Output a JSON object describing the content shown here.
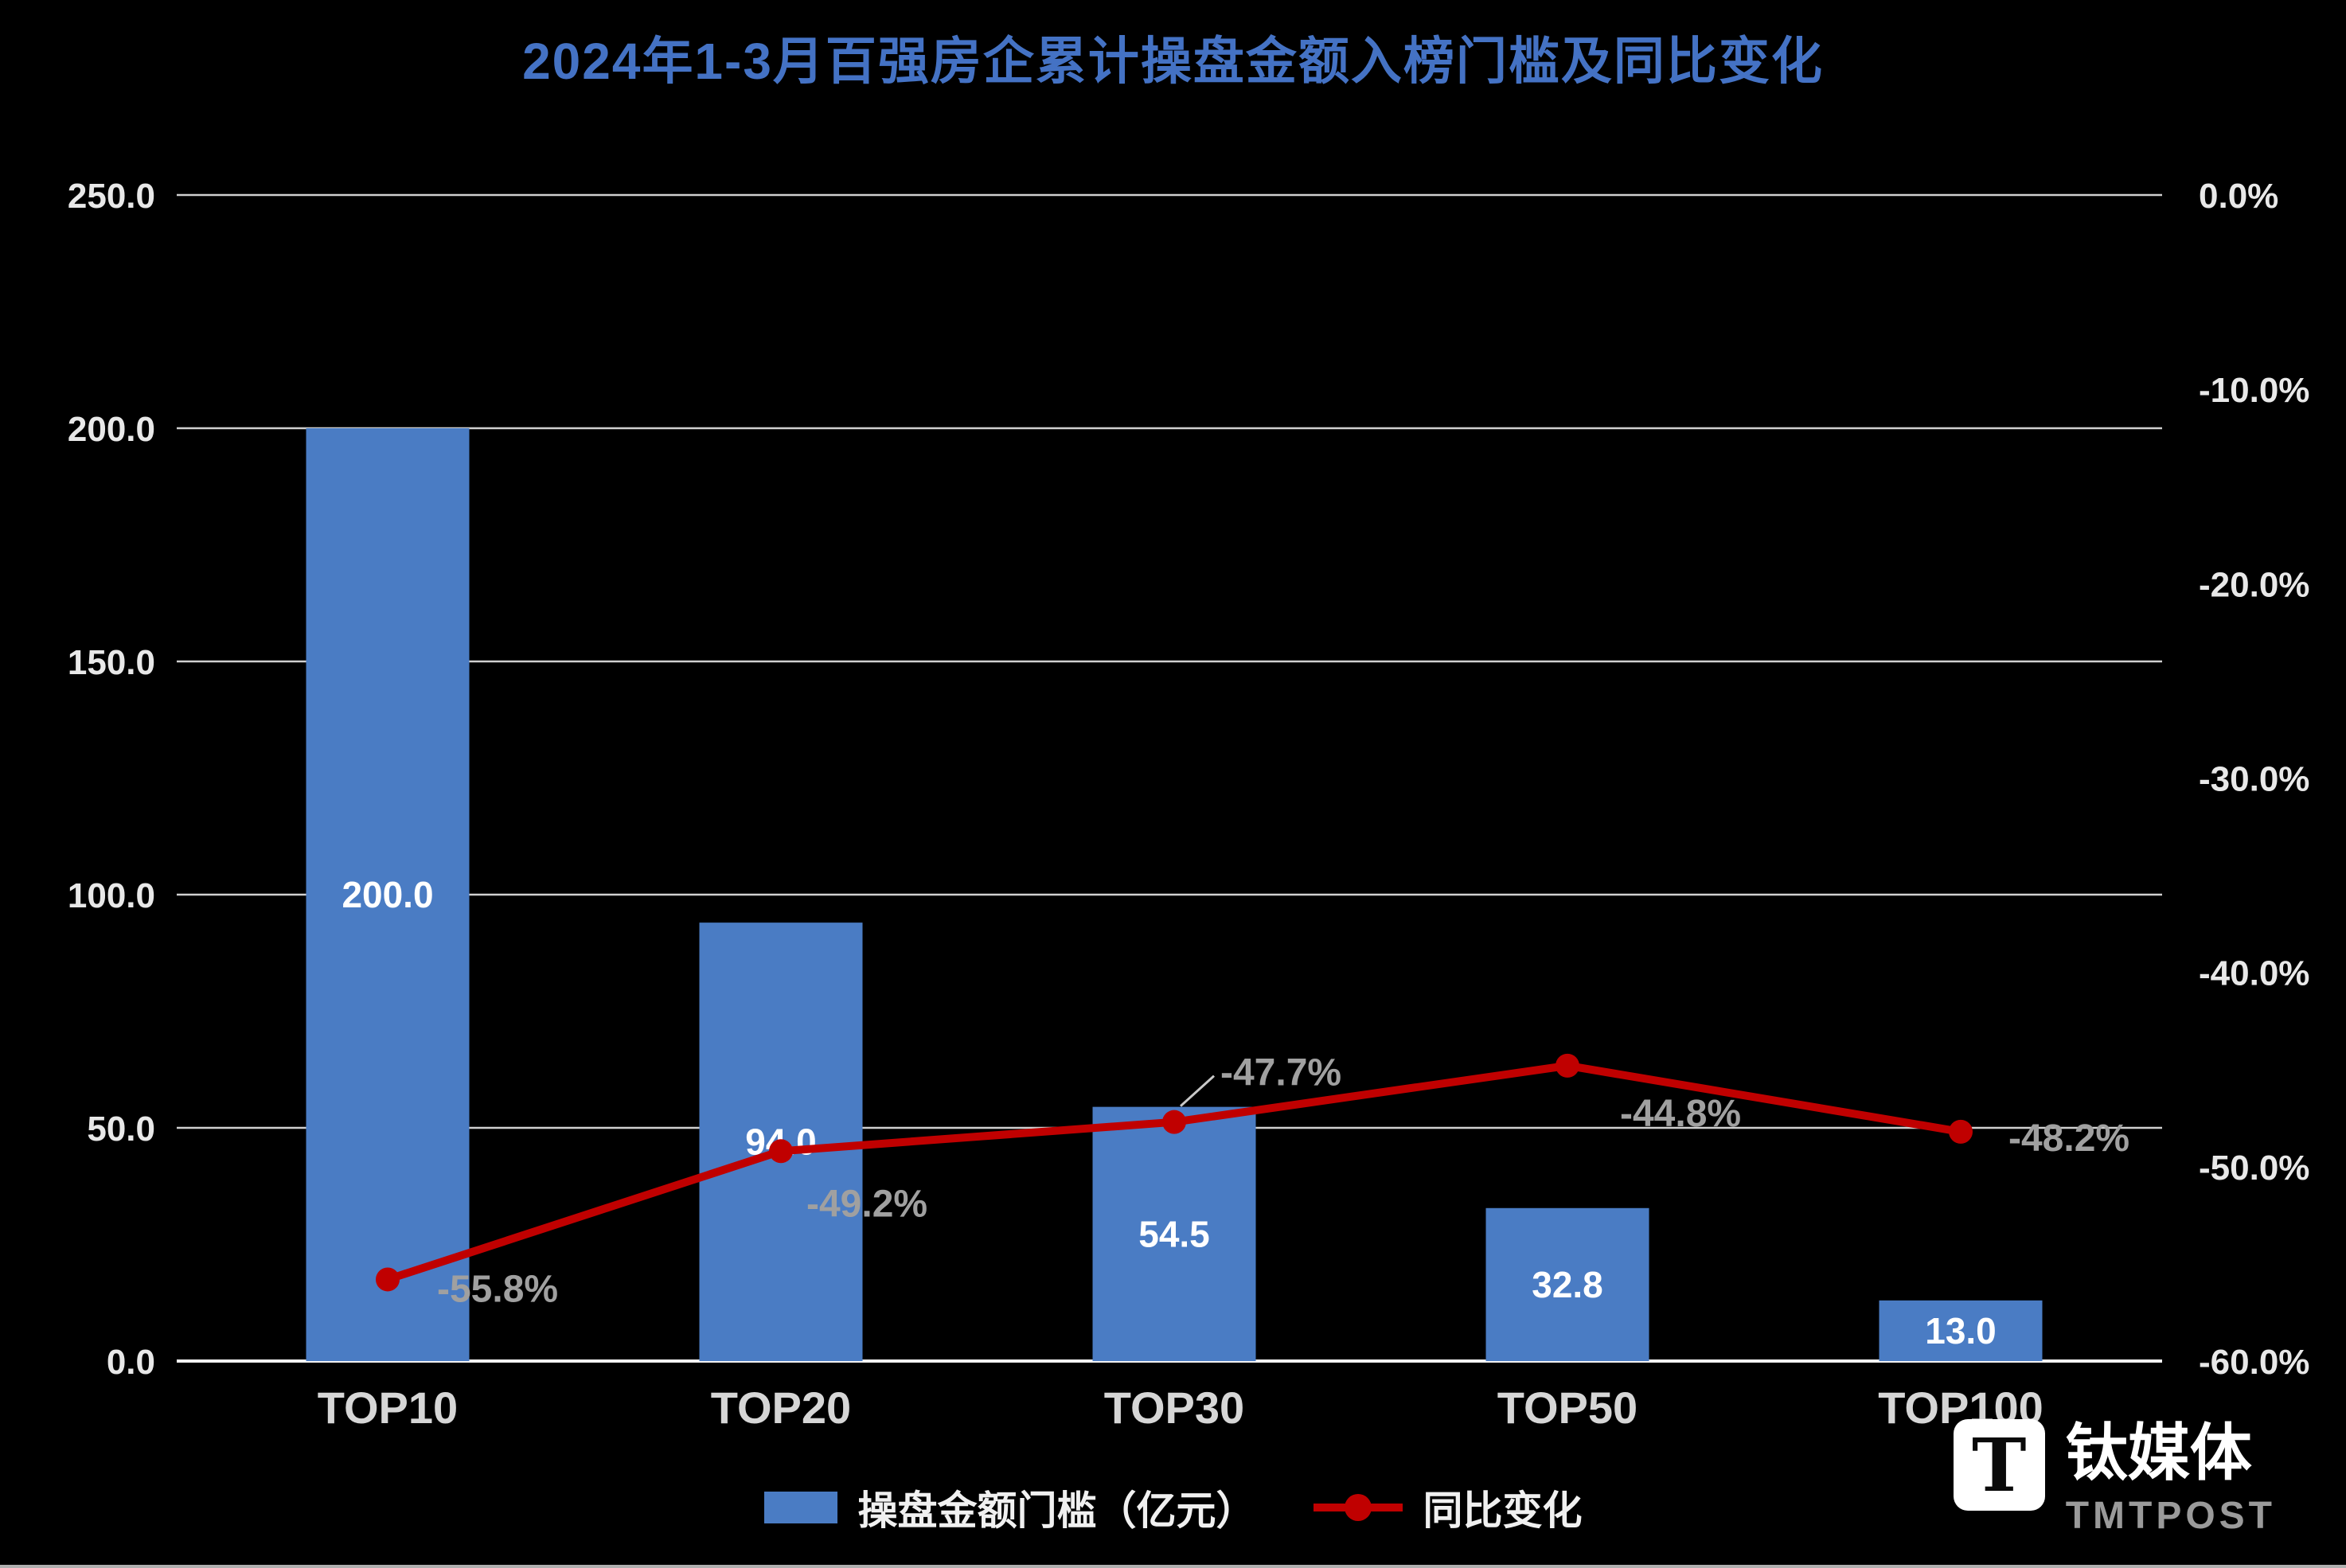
{
  "chart_data": {
    "type": "bar",
    "title": "2024年1-3月百强房企累计操盘金额入榜门槛及同比变化",
    "categories": [
      "TOP10",
      "TOP20",
      "TOP30",
      "TOP50",
      "TOP100"
    ],
    "series": [
      {
        "name": "操盘金额门槛（亿元）",
        "type": "bar",
        "axis": "left",
        "color": "#4a7cc4",
        "values": [
          200.0,
          94.0,
          54.5,
          32.8,
          13.0
        ],
        "labels": [
          "200.0",
          "94.0",
          "54.5",
          "32.8",
          "13.0"
        ]
      },
      {
        "name": "同比变化",
        "type": "line",
        "axis": "right",
        "color": "#c00000",
        "values": [
          -55.8,
          -49.2,
          -47.7,
          -44.8,
          -48.2
        ],
        "labels": [
          "-55.8%",
          "-49.2%",
          "-47.7%",
          "-44.8%",
          "-48.2%"
        ]
      }
    ],
    "left_axis": {
      "min": 0,
      "max": 250,
      "ticks": [
        "0.0",
        "50.0",
        "100.0",
        "150.0",
        "200.0",
        "250.0"
      ]
    },
    "right_axis": {
      "min": -60,
      "max": 0,
      "ticks": [
        "0.0%",
        "-10.0%",
        "-20.0%",
        "-30.0%",
        "-40.0%",
        "-50.0%",
        "-60.0%"
      ]
    },
    "legend_position": "bottom",
    "grid": true,
    "colors": {
      "title": "#4472c4",
      "background": "#000000",
      "grid": "#d0d0d0",
      "axis_text": "#e8e8e8",
      "point_label_text": "#a0a0a0"
    }
  },
  "watermark": {
    "logo_letter": "T",
    "cn": "钛媒体",
    "en": "TMTPOST"
  }
}
